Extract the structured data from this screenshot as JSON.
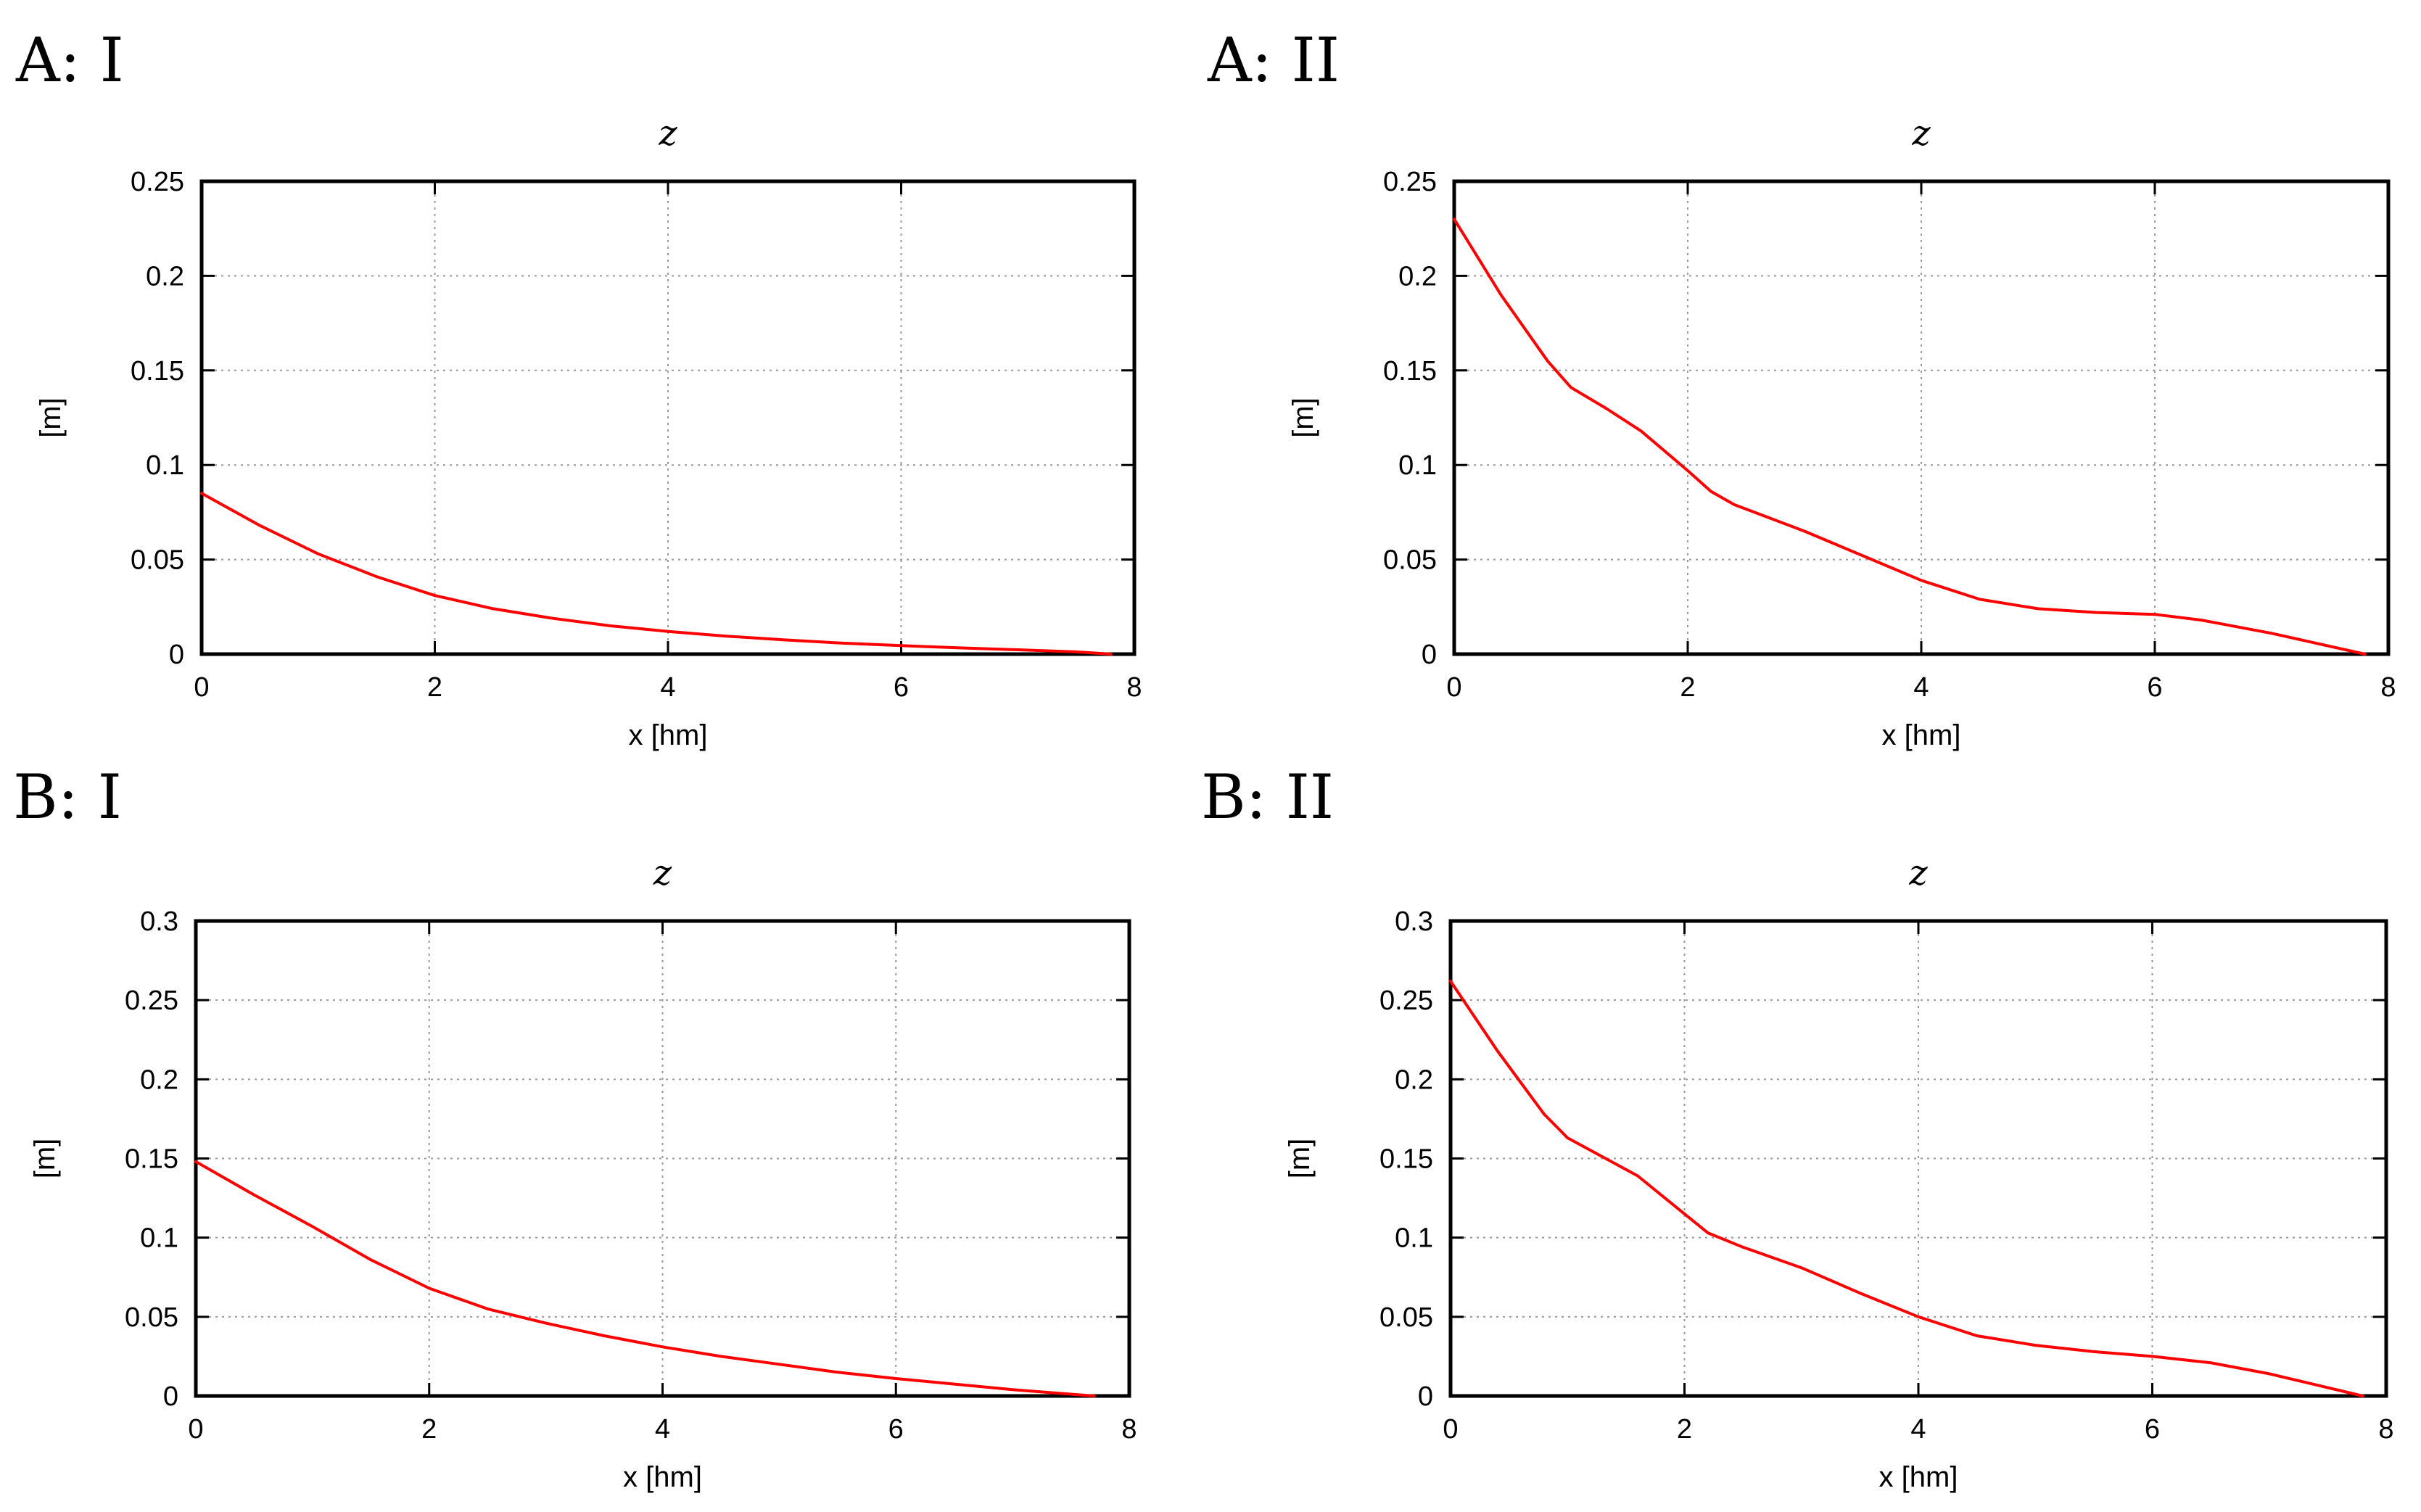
{
  "chart_data": [
    {
      "panel_label": "A: I",
      "type": "line",
      "title": "z",
      "xlabel": "x [hm]",
      "ylabel": "[m]",
      "xlim": [
        0,
        8
      ],
      "ylim": [
        0,
        0.25
      ],
      "xticks": [
        "0",
        "2",
        "4",
        "6",
        "8"
      ],
      "yticks": [
        "0",
        "0.05",
        "0.1",
        "0.15",
        "0.2",
        "0.25"
      ],
      "grid": true,
      "series": [
        {
          "color": "#ff0000",
          "x": [
            0,
            0.5,
            1,
            1.5,
            2,
            2.5,
            3,
            3.5,
            4,
            4.5,
            5,
            5.5,
            6,
            6.5,
            7,
            7.5,
            7.8
          ],
          "y": [
            0.085,
            0.068,
            0.053,
            0.041,
            0.031,
            0.024,
            0.019,
            0.015,
            0.012,
            0.0095,
            0.0075,
            0.0058,
            0.0045,
            0.0033,
            0.0023,
            0.0012,
            0
          ]
        }
      ]
    },
    {
      "panel_label": "A: II",
      "type": "line",
      "title": "z",
      "xlabel": "x [hm]",
      "ylabel": "[m]",
      "xlim": [
        0,
        8
      ],
      "ylim": [
        0,
        0.25
      ],
      "xticks": [
        "0",
        "2",
        "4",
        "6",
        "8"
      ],
      "yticks": [
        "0",
        "0.05",
        "0.1",
        "0.15",
        "0.2",
        "0.25"
      ],
      "grid": true,
      "series": [
        {
          "color": "#ff0000",
          "x": [
            0,
            0.4,
            0.8,
            1,
            1.3,
            1.6,
            2,
            2.2,
            2.4,
            3,
            3.5,
            4,
            4.5,
            5,
            5.5,
            6,
            6.4,
            7,
            7.8
          ],
          "y": [
            0.23,
            0.19,
            0.155,
            0.141,
            0.13,
            0.118,
            0.097,
            0.086,
            0.079,
            0.065,
            0.052,
            0.039,
            0.029,
            0.024,
            0.022,
            0.021,
            0.018,
            0.011,
            0
          ]
        }
      ]
    },
    {
      "panel_label": "B: I",
      "type": "line",
      "title": "z",
      "xlabel": "x [hm]",
      "ylabel": "[m]",
      "xlim": [
        0,
        8
      ],
      "ylim": [
        0,
        0.3
      ],
      "xticks": [
        "0",
        "2",
        "4",
        "6",
        "8"
      ],
      "yticks": [
        "0",
        "0.05",
        "0.1",
        "0.15",
        "0.2",
        "0.25",
        "0.3"
      ],
      "grid": true,
      "series": [
        {
          "color": "#ff0000",
          "x": [
            0,
            0.5,
            1,
            1.5,
            2,
            2.5,
            3,
            3.5,
            4,
            4.5,
            5,
            5.5,
            6,
            6.5,
            7,
            7.7
          ],
          "y": [
            0.148,
            0.127,
            0.107,
            0.086,
            0.068,
            0.055,
            0.046,
            0.038,
            0.031,
            0.025,
            0.02,
            0.015,
            0.011,
            0.0075,
            0.004,
            0
          ]
        }
      ]
    },
    {
      "panel_label": "B: II",
      "type": "line",
      "title": "z",
      "xlabel": "x [hm]",
      "ylabel": "[m]",
      "xlim": [
        0,
        8
      ],
      "ylim": [
        0,
        0.3
      ],
      "xticks": [
        "0",
        "2",
        "4",
        "6",
        "8"
      ],
      "yticks": [
        "0",
        "0.05",
        "0.1",
        "0.15",
        "0.2",
        "0.25",
        "0.3"
      ],
      "grid": true,
      "series": [
        {
          "color": "#ff0000",
          "x": [
            0,
            0.4,
            0.8,
            1,
            1.3,
            1.6,
            2,
            2.2,
            2.5,
            3,
            3.5,
            4,
            4.5,
            5,
            5.5,
            6,
            6.5,
            7,
            7.8
          ],
          "y": [
            0.262,
            0.218,
            0.178,
            0.163,
            0.151,
            0.139,
            0.115,
            0.103,
            0.094,
            0.081,
            0.065,
            0.05,
            0.038,
            0.032,
            0.028,
            0.025,
            0.021,
            0.014,
            0
          ]
        }
      ]
    }
  ]
}
